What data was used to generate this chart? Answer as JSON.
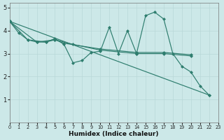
{
  "xlabel": "Humidex (Indice chaleur)",
  "bg_color": "#cce8e8",
  "grid_color": "#b8d8d8",
  "line_color": "#2e7d6e",
  "xlim": [
    0,
    23
  ],
  "ylim": [
    0,
    5.2
  ],
  "xticks": [
    0,
    1,
    2,
    3,
    4,
    5,
    6,
    7,
    8,
    9,
    10,
    11,
    12,
    13,
    14,
    15,
    16,
    17,
    18,
    19,
    20,
    21,
    22,
    23
  ],
  "yticks": [
    1,
    2,
    3,
    4,
    5
  ],
  "line1": {
    "x": [
      0,
      1,
      2,
      3,
      4,
      5,
      6,
      7,
      8,
      9,
      10,
      11,
      12,
      13,
      14,
      15,
      16,
      17,
      18,
      19,
      20,
      21,
      22
    ],
    "y": [
      4.4,
      3.9,
      3.6,
      3.5,
      3.5,
      3.65,
      3.4,
      2.6,
      2.7,
      3.05,
      3.1,
      4.15,
      3.0,
      4.0,
      3.0,
      4.65,
      4.8,
      4.5,
      3.0,
      2.45,
      2.2,
      1.6,
      1.2
    ]
  },
  "line2": {
    "x": [
      0,
      2,
      4,
      5,
      6,
      10,
      14,
      17,
      20
    ],
    "y": [
      4.4,
      3.6,
      3.5,
      3.6,
      3.45,
      3.2,
      3.05,
      3.05,
      2.95
    ]
  },
  "line3": {
    "x": [
      0,
      3,
      5,
      7,
      10,
      14,
      17,
      20
    ],
    "y": [
      4.4,
      3.5,
      3.6,
      3.4,
      3.15,
      3.0,
      3.0,
      2.9
    ]
  },
  "line4": {
    "x": [
      0,
      22
    ],
    "y": [
      4.4,
      1.2
    ]
  }
}
